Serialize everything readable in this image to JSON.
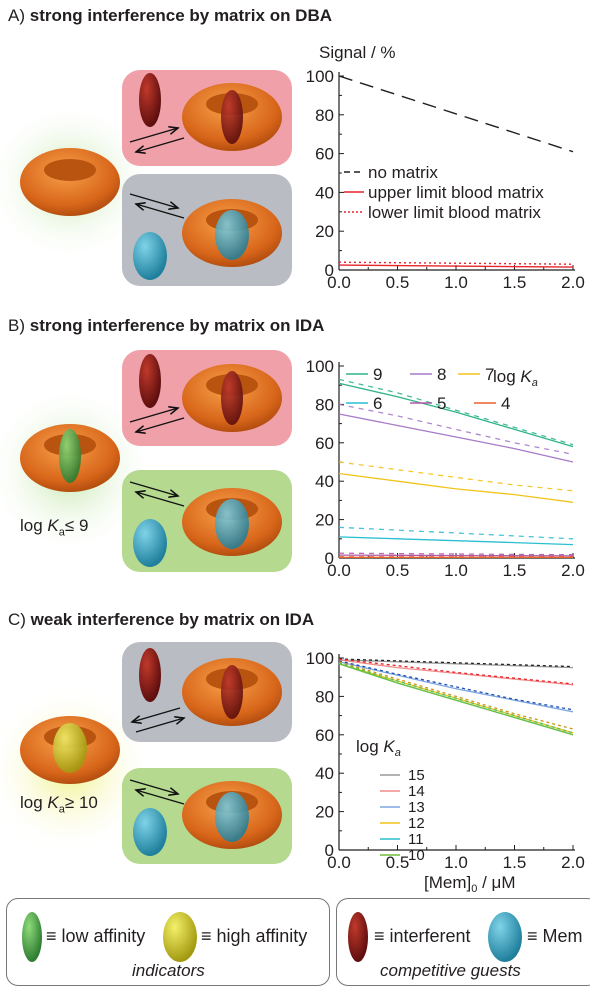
{
  "panels": {
    "a_prefix": "A) ",
    "a_title": "strong interference by matrix on DBA",
    "b_prefix": "B) ",
    "b_title": "strong interference by matrix on IDA",
    "c_prefix": "C) ",
    "c_title": "weak interference by matrix on IDA",
    "b_logka_prefix": "log ",
    "b_logka_sub": "a",
    "b_logka_suffix": "≤ 9",
    "c_logka_prefix": "log ",
    "c_logka_sub": "a",
    "c_logka_suffix": "≥ 10"
  },
  "legend": {
    "low": "≡ low affinity",
    "high": "≡ high affinity",
    "indicators": "indicators",
    "interferent": "≡ interferent",
    "mem": "≡ Mem",
    "guests": "competitive guests"
  },
  "colors": {
    "host": "#e07a1f",
    "interferent": "#8b1a1a",
    "mem": "#3aa6c4",
    "low_indicator": "#4caf50",
    "high_indicator": "#d4c92a",
    "box_red": "#f0a0a8",
    "box_grey": "#b9bcc3",
    "box_green": "#b4d98f"
  },
  "chart_data": [
    {
      "type": "line",
      "ylabel": "Signal / %",
      "xlim": [
        0,
        2
      ],
      "ylim": [
        0,
        100
      ],
      "xticks": [
        "0.0",
        "0.5",
        "1.0",
        "1.5",
        "2.0"
      ],
      "yticks": [
        "0",
        "20",
        "40",
        "60",
        "80",
        "100"
      ],
      "series": [
        {
          "name": "no matrix",
          "x": [
            0,
            2
          ],
          "y": [
            100,
            61
          ],
          "color": "#231f20",
          "style": "dashed"
        },
        {
          "name": "upper limit blood matrix",
          "x": [
            0,
            2
          ],
          "y": [
            2.5,
            1.5
          ],
          "color": "#e5242b",
          "style": "solid"
        },
        {
          "name": "lower limit blood matrix",
          "x": [
            0,
            2
          ],
          "y": [
            4,
            3
          ],
          "color": "#e5242b",
          "style": "dotted"
        }
      ]
    },
    {
      "type": "line",
      "legend_title_prefix": "log ",
      "legend_title_sub": "a",
      "xlim": [
        0,
        2
      ],
      "ylim": [
        0,
        100
      ],
      "xticks": [
        "0.0",
        "0.5",
        "1.0",
        "1.5",
        "2.0"
      ],
      "yticks": [
        "0",
        "20",
        "40",
        "60",
        "80",
        "100"
      ],
      "series": [
        {
          "name": "9",
          "color": "#2fb48b",
          "x": [
            0,
            0.5,
            1,
            1.5,
            2
          ],
          "solid": [
            91,
            84,
            76,
            67,
            58
          ],
          "dashed": [
            93,
            86,
            77,
            68,
            59
          ]
        },
        {
          "name": "8",
          "color": "#a77bc8",
          "x": [
            0,
            0.5,
            1,
            1.5,
            2
          ],
          "solid": [
            75,
            69,
            63,
            57,
            50
          ],
          "dashed": [
            80,
            74,
            67,
            60,
            54
          ]
        },
        {
          "name": "7",
          "color": "#f2c41b",
          "x": [
            0,
            0.5,
            1,
            1.5,
            2
          ],
          "solid": [
            44,
            40,
            36,
            33,
            29
          ],
          "dashed": [
            50,
            46,
            42,
            38,
            35
          ]
        },
        {
          "name": "6",
          "color": "#2bbfd2",
          "x": [
            0,
            0.5,
            1,
            1.5,
            2
          ],
          "solid": [
            11,
            10,
            9,
            8,
            7
          ],
          "dashed": [
            16,
            14.5,
            13,
            11.5,
            10
          ]
        },
        {
          "name": "5",
          "color": "#b45aa5",
          "x": [
            0,
            0.5,
            1,
            1.5,
            2
          ],
          "solid": [
            1.5,
            1.4,
            1.3,
            1.2,
            1.1
          ],
          "dashed": [
            2.5,
            2.3,
            2.1,
            1.9,
            1.7
          ]
        },
        {
          "name": "4",
          "color": "#e8622a",
          "x": [
            0,
            0.5,
            1,
            1.5,
            2
          ],
          "solid": [
            0.3,
            0.3,
            0.3,
            0.3,
            0.3
          ],
          "dashed": [
            0.6,
            0.6,
            0.6,
            0.6,
            0.6
          ]
        }
      ]
    },
    {
      "type": "line",
      "xlabel_main": "[Mem]",
      "xlabel_sub": "0",
      "xlabel_unit": " / μM",
      "legend_title_prefix": "log ",
      "legend_title_sub": "a",
      "xlim": [
        0,
        2
      ],
      "ylim": [
        0,
        100
      ],
      "xticks": [
        "0.0",
        "0.5",
        "1.0",
        "1.5",
        "2.0"
      ],
      "yticks": [
        "0",
        "20",
        "40",
        "60",
        "80",
        "100"
      ],
      "series": [
        {
          "name": "15",
          "color": "#9a9a9a",
          "x": [
            0,
            0.5,
            1,
            1.5,
            2
          ],
          "solid": [
            99,
            98,
            97,
            96,
            95
          ],
          "dashed": [
            99.5,
            98.5,
            97.5,
            96.5,
            95.5
          ],
          "dash_color": "#231f20"
        },
        {
          "name": "14",
          "color": "#f08a8a",
          "x": [
            0,
            0.5,
            1,
            1.5,
            2
          ],
          "solid": [
            99,
            95,
            92,
            89,
            86
          ],
          "dashed": [
            99.5,
            96,
            92.5,
            89.5,
            86.5
          ],
          "dash_color": "#e5242b"
        },
        {
          "name": "13",
          "color": "#7fa6e0",
          "x": [
            0,
            0.5,
            1,
            1.5,
            2
          ],
          "solid": [
            98,
            91,
            84,
            78,
            72
          ],
          "dashed": [
            98.5,
            91.5,
            85,
            78.5,
            73
          ],
          "dash_color": "#1f4fb5"
        },
        {
          "name": "12",
          "color": "#f2c41b",
          "x": [
            0,
            0.5,
            1,
            1.5,
            2
          ],
          "solid": [
            97,
            88,
            79,
            70,
            61
          ],
          "dashed": [
            98,
            89,
            80,
            71,
            63
          ],
          "dash_color": "#c9961a"
        },
        {
          "name": "11",
          "color": "#2bbfd2",
          "x": [
            0,
            0.5,
            1,
            1.5,
            2
          ],
          "solid": [
            97,
            87,
            78,
            69,
            60
          ],
          "dashed": [
            97.5,
            88,
            79,
            70,
            61
          ],
          "dash_color": "#2bbfd2"
        },
        {
          "name": "10",
          "color": "#6fbf3a",
          "x": [
            0,
            0.5,
            1,
            1.5,
            2
          ],
          "solid": [
            97,
            87,
            78,
            69,
            60
          ],
          "dashed": [
            97.5,
            88,
            79,
            70,
            61
          ],
          "dash_color": "#6fbf3a"
        }
      ]
    }
  ]
}
